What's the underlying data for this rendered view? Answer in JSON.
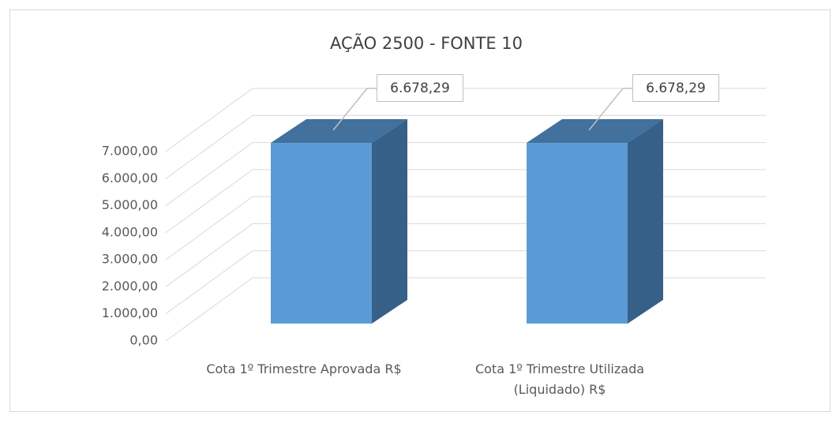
{
  "chart_data": {
    "type": "bar3d",
    "title": "AÇÃO 2500 - FONTE 10",
    "categories": [
      "Cota 1º Trimestre Aprovada R$",
      "Cota 1º Trimestre Utilizada (Liquidado) R$"
    ],
    "values": [
      6678.29,
      6678.29
    ],
    "value_labels": [
      "6.678,29",
      "6.678,29"
    ],
    "color": "#5b9bd5",
    "ylim": [
      0,
      7000
    ],
    "yticks": [
      {
        "value": 0,
        "label": "0,00"
      },
      {
        "value": 1000,
        "label": "1.000,00"
      },
      {
        "value": 2000,
        "label": "2.000,00"
      },
      {
        "value": 3000,
        "label": "3.000,00"
      },
      {
        "value": 4000,
        "label": "4.000,00"
      },
      {
        "value": 5000,
        "label": "5.000,00"
      },
      {
        "value": 6000,
        "label": "6.000,00"
      },
      {
        "value": 7000,
        "label": "7.000,00"
      }
    ],
    "grid": true
  }
}
